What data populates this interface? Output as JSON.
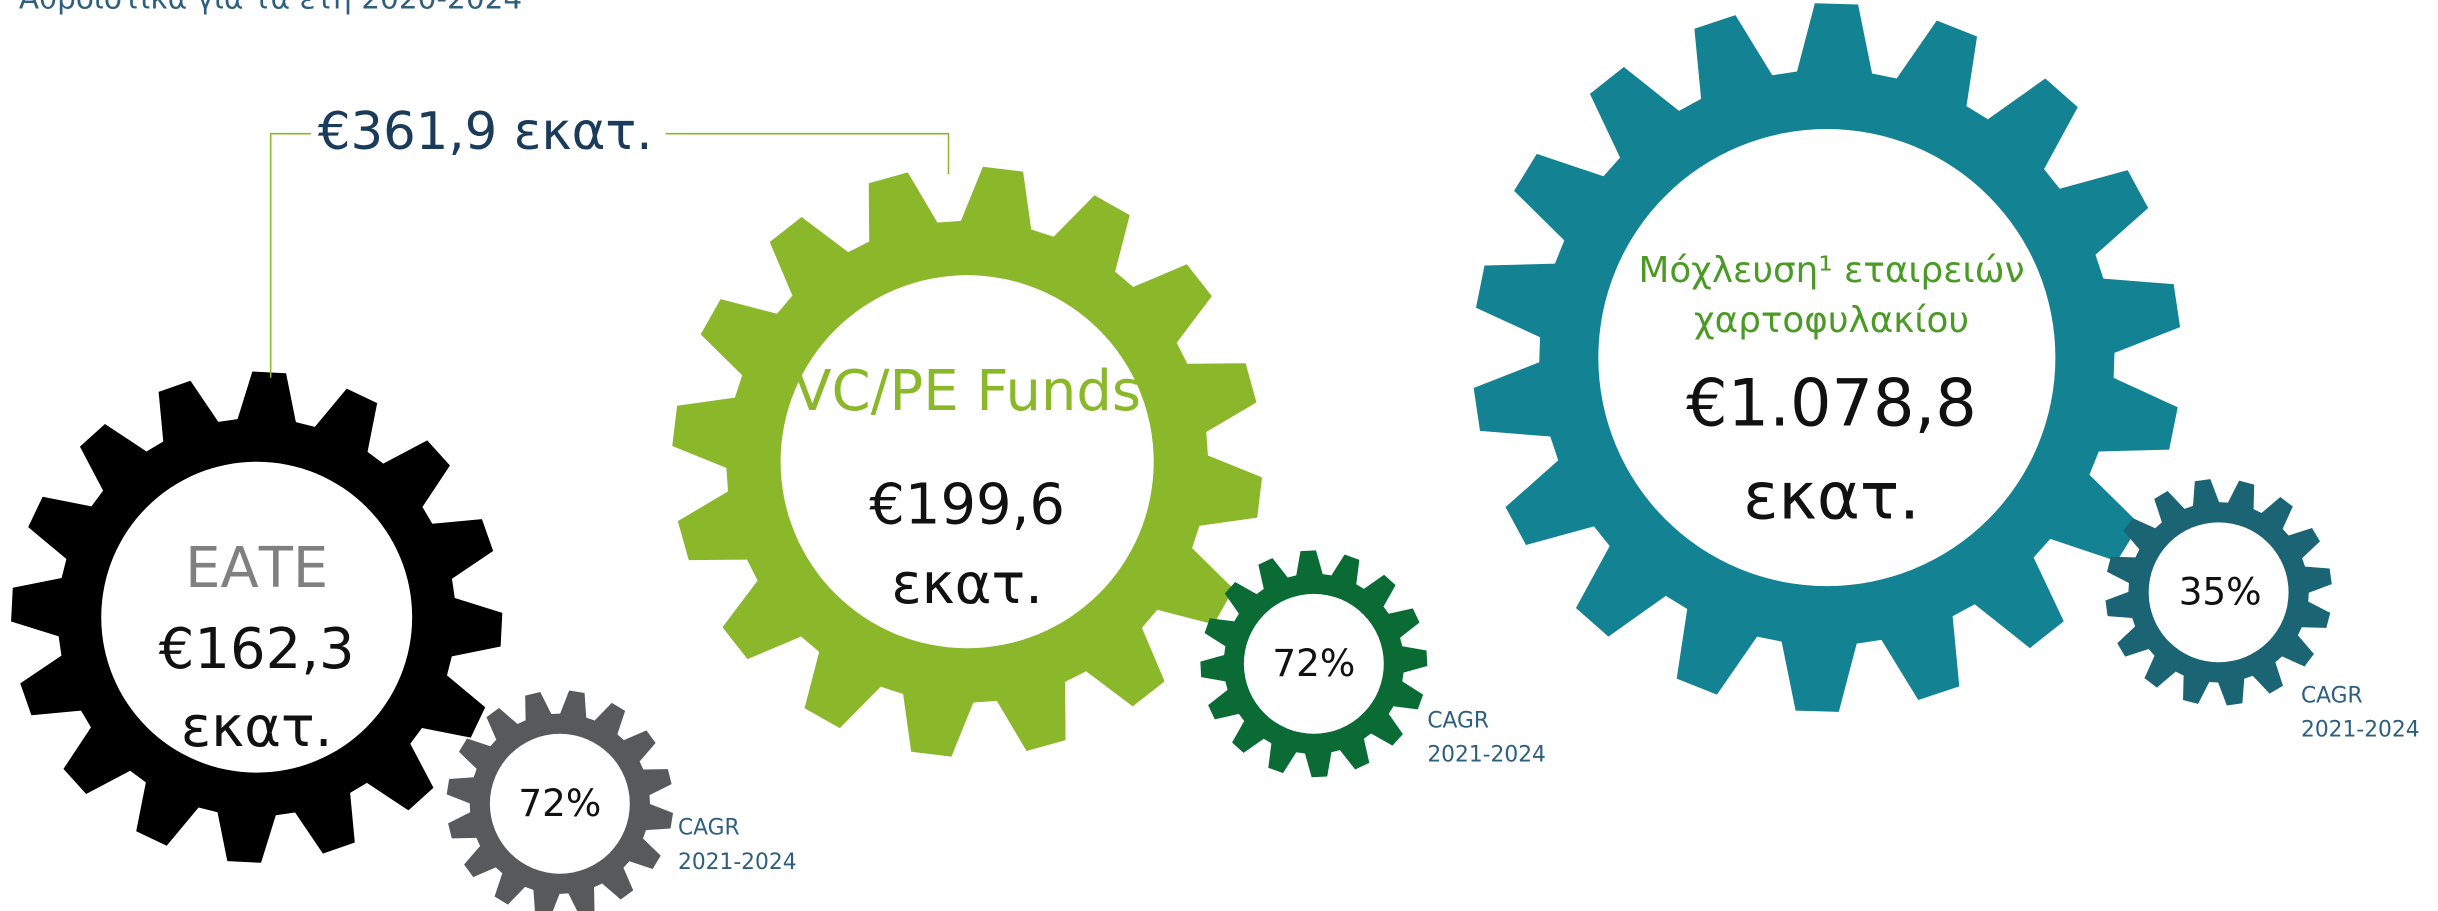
{
  "header": {
    "subtitle": "Αθροιστικά για τα έτη 2020-2024"
  },
  "total": "€361,9 εκατ.",
  "gears": [
    {
      "label": "ΕΑΤΕ",
      "value": "€162,3",
      "unit": "εκατ.",
      "cagr": "72%",
      "cagr_label": "CAGR",
      "period": "2021-2024"
    },
    {
      "label": "VC/PE Funds",
      "value": "€199,6",
      "unit": "εκατ.",
      "cagr": "72%",
      "cagr_label": "CAGR",
      "period": "2021-2024"
    },
    {
      "label": "Μόχλευση¹ εταιρειών",
      "label_line2": "χαρτοφυλακίου",
      "value": "€1.078,8",
      "unit": "εκατ.",
      "cagr": "35%",
      "cagr_label": "CAGR",
      "period": "2021-2024"
    }
  ]
}
